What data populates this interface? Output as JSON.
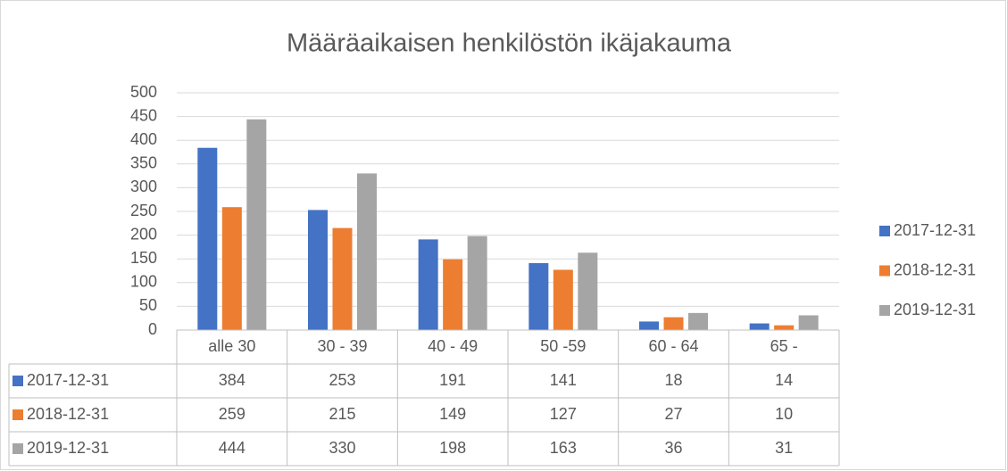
{
  "chart_data": {
    "type": "bar",
    "title": "Määräaikaisen henkilöstön ikäjakauma",
    "categories": [
      "alle 30",
      "30 - 39",
      "40 - 49",
      "50 -59",
      "60 - 64",
      "65 -"
    ],
    "series": [
      {
        "name": "2017-12-31",
        "color": "#4472c4",
        "values": [
          384,
          253,
          191,
          141,
          18,
          14
        ]
      },
      {
        "name": "2018-12-31",
        "color": "#ed7d31",
        "values": [
          259,
          215,
          149,
          127,
          27,
          10
        ]
      },
      {
        "name": "2019-12-31",
        "color": "#a5a5a5",
        "values": [
          444,
          330,
          198,
          163,
          36,
          31
        ]
      }
    ],
    "ylim": [
      0,
      500
    ],
    "yticks": [
      0,
      50,
      100,
      150,
      200,
      250,
      300,
      350,
      400,
      450,
      500
    ],
    "grid": true,
    "legend": "right",
    "data_table": true
  }
}
